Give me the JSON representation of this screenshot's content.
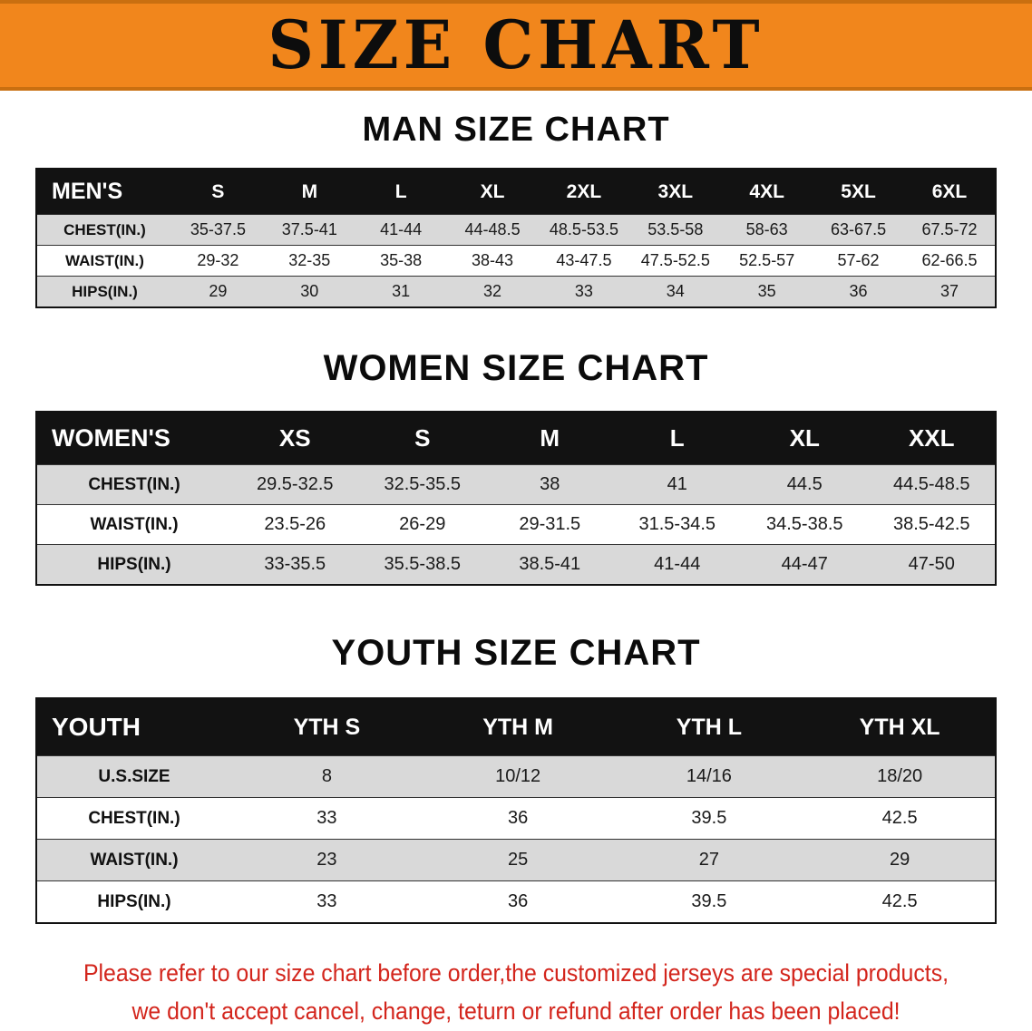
{
  "banner": {
    "title": "SIZE CHART"
  },
  "colors": {
    "banner_bg": "#f1861c",
    "banner_border": "#c96f10",
    "header_bar": "#121212",
    "row_shade": "#d9d9d9",
    "notice_red": "#d3251c"
  },
  "sections": [
    {
      "title": "MAN SIZE CHART",
      "header_label": "MEN'S",
      "columns": [
        "S",
        "M",
        "L",
        "XL",
        "2XL",
        "3XL",
        "4XL",
        "5XL",
        "6XL"
      ],
      "rows": [
        {
          "label": "CHEST(IN.)",
          "values": [
            "35-37.5",
            "37.5-41",
            "41-44",
            "44-48.5",
            "48.5-53.5",
            "53.5-58",
            "58-63",
            "63-67.5",
            "67.5-72"
          ]
        },
        {
          "label": "WAIST(IN.)",
          "values": [
            "29-32",
            "32-35",
            "35-38",
            "38-43",
            "43-47.5",
            "47.5-52.5",
            "52.5-57",
            "57-62",
            "62-66.5"
          ]
        },
        {
          "label": "HIPS(IN.)",
          "values": [
            "29",
            "30",
            "31",
            "32",
            "33",
            "34",
            "35",
            "36",
            "37"
          ]
        }
      ]
    },
    {
      "title": "WOMEN SIZE CHART",
      "header_label": "WOMEN'S",
      "columns": [
        "XS",
        "S",
        "M",
        "L",
        "XL",
        "XXL"
      ],
      "rows": [
        {
          "label": "CHEST(IN.)",
          "values": [
            "29.5-32.5",
            "32.5-35.5",
            "38",
            "41",
            "44.5",
            "44.5-48.5"
          ]
        },
        {
          "label": "WAIST(IN.)",
          "values": [
            "23.5-26",
            "26-29",
            "29-31.5",
            "31.5-34.5",
            "34.5-38.5",
            "38.5-42.5"
          ]
        },
        {
          "label": "HIPS(IN.)",
          "values": [
            "33-35.5",
            "35.5-38.5",
            "38.5-41",
            "41-44",
            "44-47",
            "47-50"
          ]
        }
      ]
    },
    {
      "title": "YOUTH SIZE CHART",
      "header_label": "YOUTH",
      "columns": [
        "YTH S",
        "YTH M",
        "YTH L",
        "YTH XL"
      ],
      "rows": [
        {
          "label": "U.S.SIZE",
          "values": [
            "8",
            "10/12",
            "14/16",
            "18/20"
          ]
        },
        {
          "label": "CHEST(IN.)",
          "values": [
            "33",
            "36",
            "39.5",
            "42.5"
          ]
        },
        {
          "label": "WAIST(IN.)",
          "values": [
            "23",
            "25",
            "27",
            "29"
          ]
        },
        {
          "label": "HIPS(IN.)",
          "values": [
            "33",
            "36",
            "39.5",
            "42.5"
          ]
        }
      ]
    }
  ],
  "footer": {
    "line1": "Please refer to our size chart before order,the customized jerseys are special products,",
    "line2": "we don't accept cancel, change, teturn or refund after order has been placed!"
  }
}
